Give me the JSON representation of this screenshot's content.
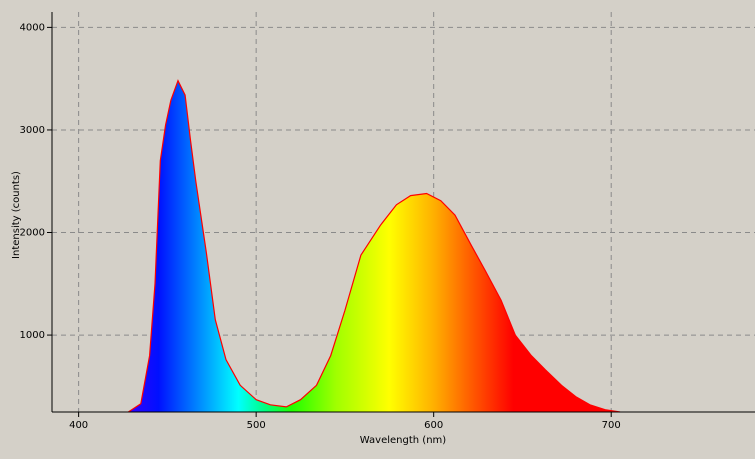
{
  "chart_data": {
    "type": "area",
    "x_label": "Wavelength (nm)",
    "y_label": "Intensity (counts)",
    "x": [
      428,
      435,
      440,
      443,
      446,
      449,
      452,
      456,
      460,
      463,
      466,
      469,
      472,
      477,
      483,
      491,
      500,
      508,
      517,
      525,
      534,
      542,
      550,
      559,
      570,
      579,
      587,
      596,
      604,
      612,
      621,
      629,
      638,
      646,
      655,
      663,
      672,
      680,
      688,
      697,
      705
    ],
    "series": [
      {
        "color": "#ff0000",
        "values": [
          250,
          330,
          800,
          1500,
          2700,
          3050,
          3290,
          3480,
          3340,
          2900,
          2500,
          2150,
          1800,
          1150,
          760,
          510,
          370,
          320,
          300,
          370,
          510,
          800,
          1240,
          1780,
          2070,
          2270,
          2360,
          2380,
          2310,
          2170,
          1880,
          1630,
          1340,
          1000,
          800,
          660,
          510,
          400,
          320,
          270,
          250
        ]
      }
    ],
    "xlim": [
      385,
      781
    ],
    "ylim": [
      250,
      4150
    ],
    "xticks": [
      400,
      500,
      600,
      700
    ],
    "yticks": [
      1000,
      2000,
      3000,
      4000
    ],
    "grid": true
  }
}
